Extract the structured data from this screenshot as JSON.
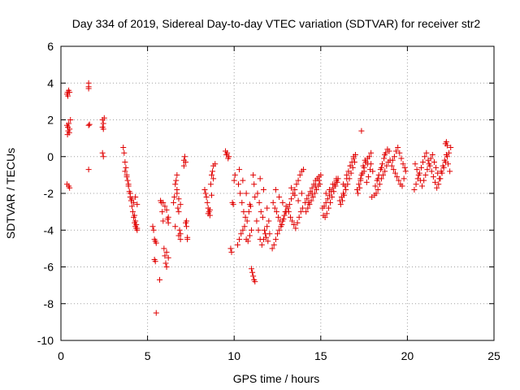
{
  "chart_data": {
    "type": "scatter",
    "title": "Day 334 of 2019, Sidereal Day-to-day VTEC variation (SDTVAR) for receiver str2",
    "xlabel": "GPS time / hours",
    "ylabel": "SDTVAR / TECUs",
    "xlim": [
      0,
      25
    ],
    "ylim": [
      -10,
      6
    ],
    "xticks": [
      "0",
      "5",
      "10",
      "15",
      "20",
      "25"
    ],
    "yticks": [
      "-10",
      "-8",
      "-6",
      "-4",
      "-2",
      "0",
      "2",
      "4",
      "6"
    ],
    "grid": true,
    "marker": "+",
    "color": "#e00000",
    "series": [
      {
        "name": "SDTVAR",
        "x": [
          0.35,
          0.38,
          0.4,
          0.45,
          0.5,
          0.35,
          0.4,
          0.45,
          0.5,
          0.55,
          0.38,
          0.42,
          0.48,
          0.35,
          0.45,
          0.5,
          1.6,
          1.6,
          1.6,
          1.6,
          1.6,
          1.65,
          2.4,
          2.45,
          2.4,
          2.45,
          2.5,
          2.4,
          2.45,
          3.6,
          3.65,
          3.7,
          3.75,
          3.8,
          3.85,
          3.9,
          3.95,
          4.0,
          4.05,
          4.1,
          4.15,
          4.2,
          4.25,
          4.3,
          4.35,
          4.4,
          3.7,
          3.8,
          3.9,
          4.0,
          4.1,
          4.2,
          4.3,
          4.4,
          4.25,
          4.3,
          4.35,
          4.4,
          5.3,
          5.35,
          5.4,
          5.45,
          5.5,
          5.4,
          5.45,
          5.5,
          5.7,
          5.75,
          5.8,
          5.85,
          5.9,
          5.95,
          6.0,
          6.05,
          6.1,
          6.15,
          6.2,
          5.9,
          6.0,
          6.1,
          6.2,
          6.1,
          6.2,
          6.5,
          6.55,
          6.6,
          6.65,
          6.7,
          6.75,
          6.8,
          6.85,
          6.9,
          6.6,
          6.7,
          6.8,
          6.9,
          6.7,
          6.8,
          6.9,
          7.1,
          7.15,
          7.2,
          7.25,
          7.3,
          7.1,
          7.2,
          7.3,
          7.25,
          8.3,
          8.35,
          8.4,
          8.45,
          8.5,
          8.55,
          8.6,
          8.65,
          8.7,
          8.75,
          8.8,
          8.5,
          8.6,
          8.7,
          8.8,
          8.9,
          9.5,
          9.55,
          9.6,
          9.65,
          9.7,
          9.8,
          9.85,
          9.9,
          9.95,
          10.0,
          10.05,
          10.2,
          10.3,
          10.4,
          10.5,
          10.6,
          10.7,
          10.8,
          10.9,
          11.0,
          10.25,
          10.35,
          10.45,
          10.55,
          10.65,
          10.75,
          10.85,
          10.95,
          10.3,
          10.5,
          10.7,
          10.9,
          11.0,
          11.05,
          11.1,
          11.15,
          11.2,
          11.1,
          11.15,
          11.2,
          11.3,
          11.4,
          11.5,
          11.6,
          11.7,
          11.8,
          11.9,
          12.0,
          11.35,
          11.45,
          11.55,
          11.65,
          11.75,
          11.85,
          11.95,
          12.05,
          11.5,
          11.7,
          11.9,
          12.2,
          12.3,
          12.4,
          12.5,
          12.6,
          12.7,
          12.8,
          12.9,
          13.0,
          12.25,
          12.35,
          12.45,
          12.55,
          12.65,
          12.75,
          12.85,
          12.95,
          12.4,
          12.6,
          12.8,
          13.0,
          13.1,
          13.2,
          13.3,
          13.4,
          13.5,
          13.6,
          13.7,
          13.8,
          13.9,
          14.0,
          13.15,
          13.25,
          13.35,
          13.45,
          13.55,
          13.65,
          13.75,
          13.85,
          13.95,
          13.3,
          13.5,
          13.7,
          13.9,
          14.1,
          14.2,
          14.3,
          14.4,
          14.5,
          14.6,
          14.7,
          14.8,
          14.9,
          15.0,
          14.15,
          14.25,
          14.35,
          14.45,
          14.55,
          14.65,
          14.75,
          14.85,
          14.95,
          14.3,
          14.5,
          14.7,
          14.9,
          15.1,
          15.2,
          15.3,
          15.4,
          15.5,
          15.6,
          15.7,
          15.8,
          15.9,
          16.0,
          15.15,
          15.25,
          15.35,
          15.45,
          15.55,
          15.65,
          15.75,
          15.85,
          15.95,
          15.3,
          15.5,
          15.7,
          15.9,
          16.1,
          16.2,
          16.3,
          16.4,
          16.5,
          16.6,
          16.7,
          16.8,
          16.9,
          17.0,
          16.15,
          16.25,
          16.35,
          16.45,
          16.55,
          16.65,
          16.75,
          16.85,
          16.95,
          16.3,
          16.5,
          16.7,
          16.9,
          17.1,
          17.2,
          17.3,
          17.4,
          17.5,
          17.6,
          17.7,
          17.8,
          17.9,
          18.0,
          17.15,
          17.25,
          17.35,
          17.45,
          17.55,
          17.65,
          17.75,
          17.85,
          17.95,
          17.3,
          17.5,
          17.7,
          17.9,
          17.35,
          18.1,
          18.2,
          18.3,
          18.4,
          18.5,
          18.6,
          18.7,
          18.8,
          18.9,
          19.0,
          18.15,
          18.25,
          18.35,
          18.45,
          18.55,
          18.65,
          18.75,
          18.85,
          18.95,
          18.3,
          18.5,
          18.7,
          19.1,
          19.2,
          19.3,
          19.4,
          19.5,
          19.6,
          19.7,
          19.8,
          19.9,
          19.15,
          19.25,
          19.35,
          19.45,
          19.55,
          19.65,
          19.75,
          19.85,
          20.4,
          20.5,
          20.6,
          20.7,
          20.8,
          20.9,
          21.0,
          21.1,
          21.2,
          21.3,
          21.4,
          21.5,
          21.6,
          21.7,
          21.8,
          21.9,
          22.0,
          22.1,
          22.2,
          22.3,
          22.4,
          22.5,
          20.45,
          20.55,
          20.65,
          20.75,
          20.85,
          20.95,
          21.05,
          21.15,
          21.25,
          21.35,
          21.45,
          21.55,
          21.65,
          21.75,
          21.85,
          21.95,
          22.05,
          22.15,
          22.25,
          22.35,
          22.45,
          22.2,
          22.25,
          22.3
        ],
        "y": [
          3.4,
          3.5,
          3.3,
          3.6,
          3.5,
          1.7,
          1.6,
          1.8,
          1.5,
          2.0,
          1.2,
          1.4,
          1.3,
          -1.5,
          -1.6,
          -1.7,
          4.0,
          3.8,
          3.7,
          1.7,
          -0.7,
          1.75,
          2.0,
          1.8,
          1.6,
          1.5,
          2.1,
          0.2,
          0.0,
          0.5,
          0.2,
          -0.3,
          -0.6,
          -1.0,
          -1.3,
          -1.6,
          -1.9,
          -2.2,
          -2.4,
          -2.7,
          -3.0,
          -3.3,
          -3.6,
          -3.8,
          -3.9,
          -4.0,
          -0.8,
          -1.1,
          -1.5,
          -2.0,
          -2.3,
          -2.5,
          -2.2,
          -2.6,
          -3.2,
          -3.5,
          -3.7,
          -3.9,
          -3.8,
          -4.0,
          -4.5,
          -4.6,
          -4.7,
          -5.6,
          -5.7,
          -8.5,
          -6.7,
          -2.4,
          -2.5,
          -3.0,
          -3.5,
          -5.0,
          -5.4,
          -5.8,
          -6.0,
          -3.4,
          -3.6,
          -2.5,
          -2.7,
          -2.9,
          -3.3,
          -5.2,
          -5.5,
          -2.5,
          -2.2,
          -1.5,
          -1.3,
          -1.0,
          -2.8,
          -3.0,
          -4.0,
          -4.2,
          -3.8,
          -2.0,
          -4.3,
          -4.5,
          -1.8,
          -2.3,
          -2.6,
          -0.2,
          0.0,
          -3.6,
          -3.8,
          -4.5,
          -0.5,
          -0.3,
          -4.4,
          -3.5,
          -1.8,
          -2.0,
          -2.2,
          -2.5,
          -2.8,
          -3.0,
          -3.2,
          -1.5,
          -1.0,
          -0.8,
          -0.5,
          -3.1,
          -2.9,
          -2.1,
          -1.2,
          -0.4,
          0.3,
          0.1,
          0.2,
          -0.1,
          0.0,
          -5.0,
          -5.2,
          -2.5,
          -2.6,
          -1.3,
          -1.0,
          -4.8,
          -4.5,
          -4.2,
          -4.0,
          -3.8,
          -4.5,
          -4.6,
          -4.3,
          -4.0,
          -1.5,
          -2.0,
          -2.5,
          -3.0,
          -3.3,
          -3.5,
          -3.0,
          -2.7,
          -0.7,
          -1.3,
          -2.0,
          -2.6,
          -6.1,
          -6.3,
          -6.5,
          -6.7,
          -6.8,
          -1.0,
          -1.5,
          -2.2,
          -3.5,
          -4.0,
          -4.5,
          -4.8,
          -4.5,
          -4.2,
          -3.8,
          -3.5,
          -2.0,
          -2.5,
          -3.0,
          -3.3,
          -4.0,
          -4.4,
          -4.6,
          -4.2,
          -1.2,
          -1.8,
          -2.8,
          -5.0,
          -4.8,
          -4.5,
          -4.2,
          -4.0,
          -3.8,
          -3.5,
          -3.2,
          -3.0,
          -2.5,
          -2.8,
          -3.0,
          -3.3,
          -3.5,
          -3.7,
          -3.4,
          -3.0,
          -1.8,
          -2.2,
          -2.5,
          -2.7,
          -2.8,
          -2.6,
          -2.3,
          -2.0,
          -1.8,
          -1.5,
          -1.3,
          -1.0,
          -0.8,
          -0.7,
          -3.0,
          -3.3,
          -3.5,
          -3.7,
          -3.9,
          -3.6,
          -3.3,
          -3.0,
          -2.8,
          -1.7,
          -2.1,
          -2.4,
          -2.0,
          -2.5,
          -2.3,
          -2.1,
          -1.9,
          -1.7,
          -1.5,
          -1.3,
          -1.2,
          -1.1,
          -1.0,
          -3.0,
          -2.8,
          -2.6,
          -2.4,
          -2.2,
          -2.0,
          -1.8,
          -1.6,
          -1.5,
          -2.5,
          -2.0,
          -1.6,
          -1.3,
          -2.8,
          -2.7,
          -2.5,
          -2.3,
          -2.1,
          -1.9,
          -1.7,
          -1.5,
          -1.3,
          -1.2,
          -3.2,
          -3.3,
          -3.1,
          -2.8,
          -2.5,
          -2.2,
          -1.9,
          -1.6,
          -1.4,
          -2.0,
          -1.8,
          -1.5,
          -1.2,
          -2.4,
          -2.2,
          -2.0,
          -1.6,
          -1.2,
          -0.8,
          -0.5,
          -0.3,
          -0.1,
          0.1,
          -2.6,
          -2.4,
          -2.1,
          -1.8,
          -1.5,
          -1.2,
          -0.9,
          -0.6,
          -0.3,
          -1.5,
          -1.0,
          -0.5,
          0.0,
          -1.8,
          -1.5,
          -1.2,
          -0.9,
          -0.6,
          -0.3,
          -0.1,
          0.0,
          -0.4,
          -0.8,
          -2.0,
          -1.7,
          -1.0,
          -0.5,
          -0.2,
          -1.4,
          -1.1,
          -0.7,
          -2.2,
          -1.3,
          -0.8,
          -0.4,
          0.2,
          1.4,
          -2.1,
          -2.0,
          -1.8,
          -1.5,
          -1.2,
          -1.0,
          -0.8,
          -0.5,
          -0.3,
          -0.2,
          -1.6,
          -1.3,
          -1.0,
          -0.7,
          -0.4,
          -0.1,
          0.2,
          0.4,
          0.3,
          -1.2,
          -0.6,
          0.1,
          -0.5,
          -0.7,
          -0.9,
          -1.1,
          -1.3,
          -1.5,
          -1.6,
          -1.2,
          -0.8,
          -0.2,
          0.0,
          0.3,
          0.5,
          0.2,
          -0.1,
          -0.4,
          -0.6,
          -1.8,
          -1.5,
          -1.2,
          -0.9,
          -0.6,
          -0.3,
          0.0,
          0.2,
          -0.2,
          -0.5,
          -0.8,
          -1.1,
          -1.4,
          -1.7,
          -1.5,
          -1.2,
          -0.9,
          -0.6,
          -0.3,
          0.0,
          0.2,
          0.5,
          -0.4,
          -0.7,
          -1.0,
          -1.3,
          -1.6,
          -1.3,
          -1.0,
          -0.7,
          -0.4,
          -0.1,
          0.1,
          -0.3,
          -0.6,
          -0.9,
          -1.2,
          -0.8,
          -0.5,
          -0.2,
          0.1,
          -0.4,
          -0.8,
          0.7,
          0.8,
          0.6
        ]
      }
    ]
  }
}
